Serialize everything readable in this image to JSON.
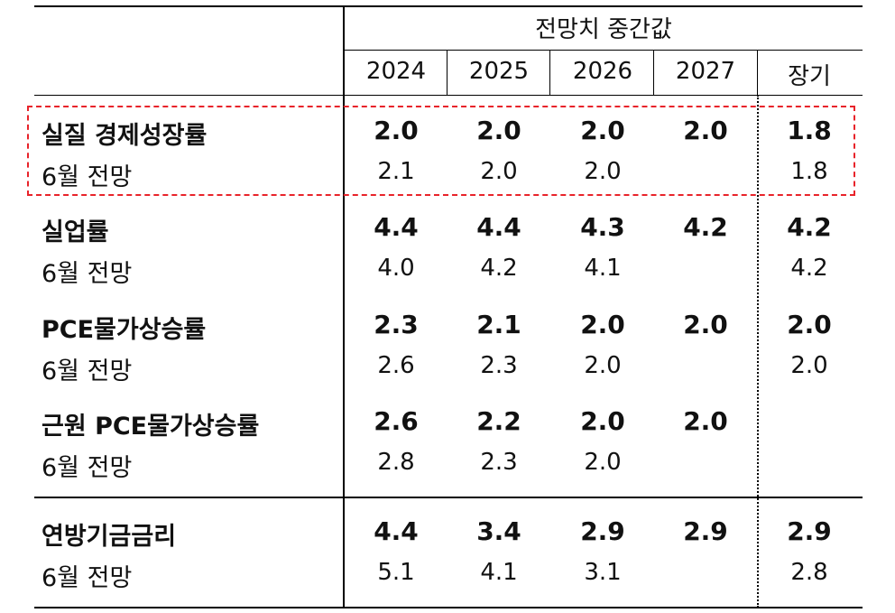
{
  "table": {
    "header_title": "전망치 중간값",
    "columns": [
      "2024",
      "2025",
      "2026",
      "2027",
      "장기"
    ],
    "rows": [
      {
        "label": "실질 경제성장률",
        "values": [
          "2.0",
          "2.0",
          "2.0",
          "2.0",
          "1.8"
        ],
        "sub_label": "6월 전망",
        "sub_values": [
          "2.1",
          "2.0",
          "2.0",
          "",
          "1.8"
        ]
      },
      {
        "label": "실업률",
        "values": [
          "4.4",
          "4.4",
          "4.3",
          "4.2",
          "4.2"
        ],
        "sub_label": "6월 전망",
        "sub_values": [
          "4.0",
          "4.2",
          "4.1",
          "",
          "4.2"
        ]
      },
      {
        "label": "PCE물가상승률",
        "values": [
          "2.3",
          "2.1",
          "2.0",
          "2.0",
          "2.0"
        ],
        "sub_label": "6월 전망",
        "sub_values": [
          "2.6",
          "2.3",
          "2.0",
          "",
          "2.0"
        ]
      },
      {
        "label": "근원 PCE물가상승률",
        "values": [
          "2.6",
          "2.2",
          "2.0",
          "2.0",
          ""
        ],
        "sub_label": "6월 전망",
        "sub_values": [
          "2.8",
          "2.3",
          "2.0",
          "",
          ""
        ]
      },
      {
        "label": "연방기금금리",
        "values": [
          "4.4",
          "3.4",
          "2.9",
          "2.9",
          "2.9"
        ],
        "sub_label": "6월 전망",
        "sub_values": [
          "5.1",
          "4.1",
          "3.1",
          "",
          "2.8"
        ]
      }
    ]
  },
  "colors": {
    "highlight_border": "#e8232a",
    "rules": "#000000"
  }
}
